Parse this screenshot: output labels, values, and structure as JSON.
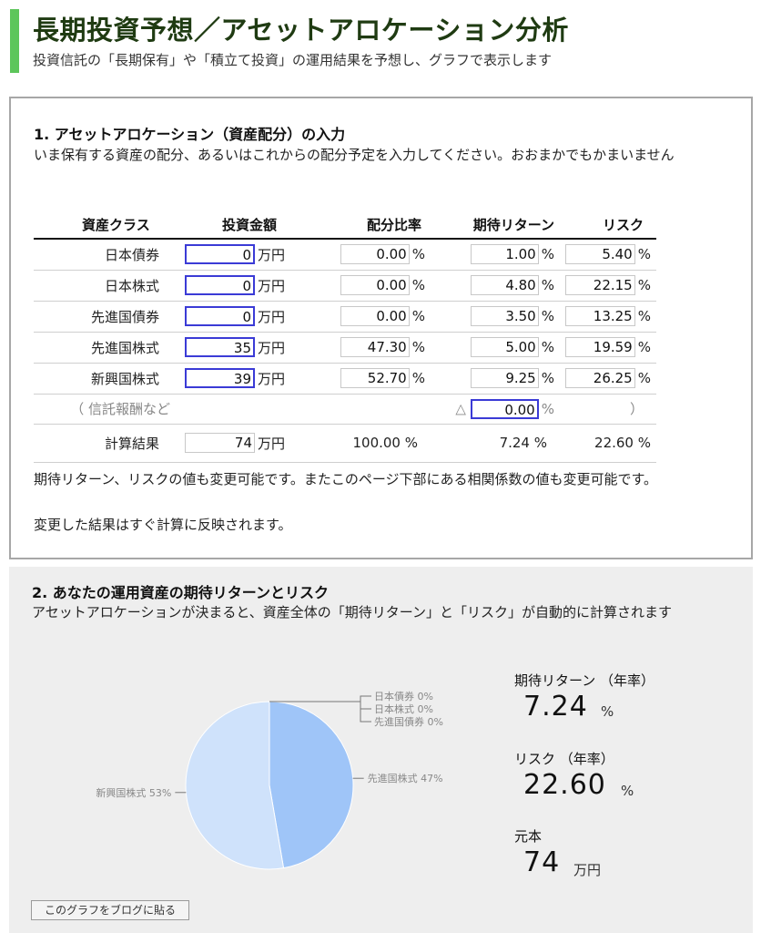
{
  "header": {
    "title": "長期投資予想／アセットアロケーション分析",
    "subtitle": "投資信託の「長期保有」や「積立て投資」の運用結果を予想し、グラフで表示します"
  },
  "section1": {
    "title": "1. アセットアロケーション（資産配分）の入力",
    "description": "いま保有する資産の配分、あるいはこれからの配分予定を入力してください。おおまかでもかまいません",
    "columns": [
      "資産クラス",
      "投資金額",
      "配分比率",
      "期待リターン",
      "リスク"
    ],
    "unit_yen": "万円",
    "unit_pct": "%",
    "rows": [
      {
        "name": "日本債券",
        "amount": "0",
        "ratio": "0.00",
        "return": "1.00",
        "risk": "5.40"
      },
      {
        "name": "日本株式",
        "amount": "0",
        "ratio": "0.00",
        "return": "4.80",
        "risk": "22.15"
      },
      {
        "name": "先進国債券",
        "amount": "0",
        "ratio": "0.00",
        "return": "3.50",
        "risk": "13.25"
      },
      {
        "name": "先進国株式",
        "amount": "35",
        "ratio": "47.30",
        "return": "5.00",
        "risk": "19.59"
      },
      {
        "name": "新興国株式",
        "amount": "39",
        "ratio": "52.70",
        "return": "9.25",
        "risk": "26.25"
      }
    ],
    "fee": {
      "label": "（ 信託報酬など",
      "prefix": "△",
      "value": "0.00",
      "close": "）"
    },
    "total": {
      "label": "計算結果",
      "amount": "74",
      "ratio": "100.00 %",
      "return": "7.24 %",
      "risk": "22.60 %"
    },
    "note1": "期待リターン、リスクの値も変更可能です。またこのページ下部にある相関係数の値も変更可能です。",
    "note2": "変更した結果はすぐ計算に反映されます。"
  },
  "section2": {
    "title": "2. あなたの運用資産の期待リターンとリスク",
    "description": "アセットアロケーションが決まると、資産全体の「期待リターン」と「リスク」が自動的に計算されます",
    "return_label": "期待リターン （年率）",
    "return_value": "7.24",
    "return_unit": "%",
    "risk_label": "リスク （年率）",
    "risk_value": "22.60",
    "risk_unit": "%",
    "principal_label": "元本",
    "principal_value": "74",
    "principal_unit": "万円",
    "blog_button": "このグラフをブログに貼る"
  },
  "chart_data": {
    "type": "pie",
    "slices": [
      {
        "label": "日本債券 0%",
        "value": 0,
        "color": "#9fc5f8"
      },
      {
        "label": "日本株式 0%",
        "value": 0,
        "color": "#9fc5f8"
      },
      {
        "label": "先進国債券 0%",
        "value": 0,
        "color": "#9fc5f8"
      },
      {
        "label": "先進国株式 47%",
        "value": 47.3,
        "color": "#9fc5f8"
      },
      {
        "label": "新興国株式 53%",
        "value": 52.7,
        "color": "#cfe2fb"
      }
    ]
  }
}
